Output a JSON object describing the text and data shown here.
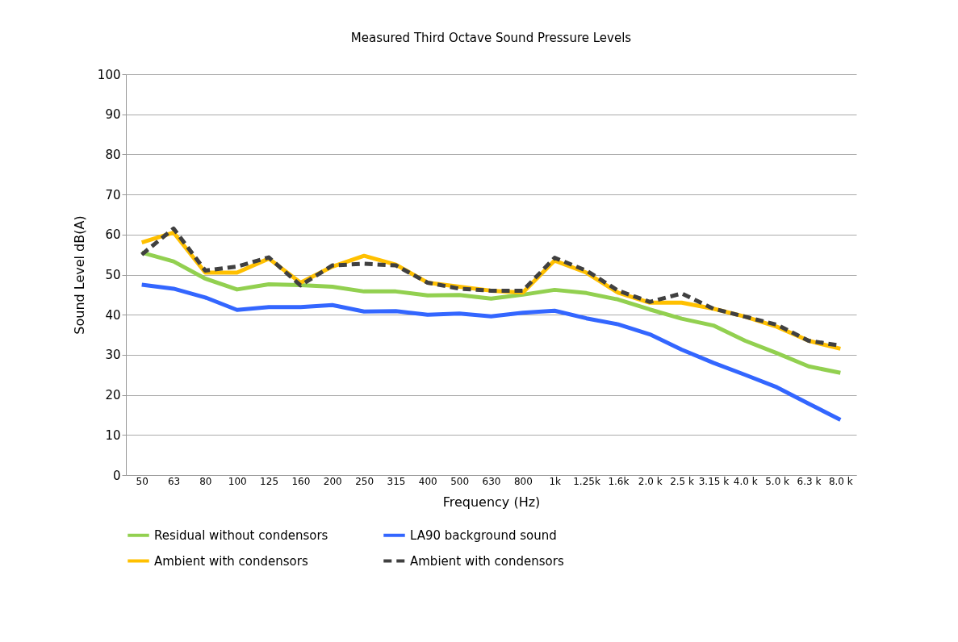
{
  "chart_data": {
    "type": "line",
    "title": "Measured Third Octave Sound Pressure Levels",
    "xlabel": "Frequency (Hz)",
    "ylabel": "Sound Level dB(A)",
    "categories": [
      "50",
      "63",
      "80",
      "100",
      "125",
      "160",
      "200",
      "250",
      "315",
      "400",
      "500",
      "630",
      "800",
      "1k",
      "1.25k",
      "1.6k",
      "2.0 k",
      "2.5 k",
      "3.15 k",
      "4.0 k",
      "5.0 k",
      "6.3 k",
      "8.0 k"
    ],
    "series": [
      {
        "name": "Residual without condensors",
        "color": "#92d050",
        "line_style": "solid",
        "values": [
          55.5,
          53.3,
          49,
          46.3,
          47.6,
          47.4,
          47,
          45.8,
          45.8,
          44.8,
          44.9,
          44,
          45,
          46.2,
          45.4,
          43.8,
          41.3,
          39,
          37.3,
          33.5,
          30.4,
          27.1,
          25.5
        ]
      },
      {
        "name": "LA90 background sound",
        "color": "#3366ff",
        "line_style": "solid",
        "values": [
          47.5,
          46.5,
          44.3,
          41.2,
          41.9,
          41.9,
          42.4,
          40.8,
          40.9,
          40,
          40.3,
          39.6,
          40.5,
          41,
          39.1,
          37.6,
          35.1,
          31.3,
          28,
          25,
          21.9,
          17.8,
          13.8
        ]
      },
      {
        "name": "Ambient with condensors",
        "color": "#ffc000",
        "line_style": "solid",
        "values": [
          58,
          60.5,
          50.5,
          50.5,
          54,
          48,
          52,
          54.7,
          52.5,
          48,
          47,
          46,
          45.5,
          53.5,
          50.5,
          45.5,
          43,
          43,
          41.5,
          39.5,
          37,
          33.5,
          31.5
        ]
      },
      {
        "name": "Ambient with condensors ",
        "color": "#404040",
        "line_style": "dashed",
        "values": [
          55,
          61.5,
          51,
          52,
          54.3,
          47.3,
          52.3,
          52.7,
          52.3,
          48,
          46.5,
          46,
          46,
          54.2,
          51,
          46,
          43.2,
          45.3,
          41.5,
          39.5,
          37.5,
          33.5,
          32.3
        ]
      }
    ],
    "ylim": [
      0,
      100
    ],
    "yticks": [
      0,
      10,
      20,
      30,
      40,
      50,
      60,
      70,
      80,
      90,
      100
    ],
    "grid": "y",
    "legend": "bottom",
    "marker": "none"
  }
}
